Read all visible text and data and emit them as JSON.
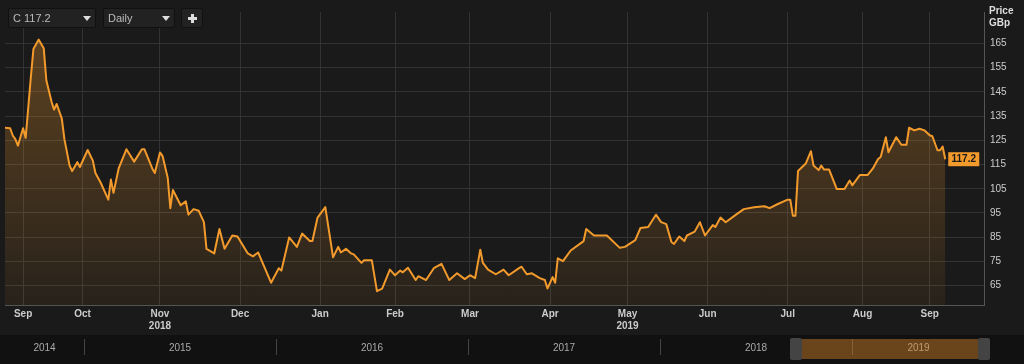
{
  "chart_data": {
    "type": "area",
    "ylabel": "Price GBp",
    "color": "#f39a2c",
    "x": [
      "2018-09-16",
      "2018-09-18",
      "2018-09-19",
      "2018-09-20",
      "2018-09-21",
      "2018-09-23",
      "2018-09-24",
      "2018-09-26",
      "2018-09-27",
      "2018-09-29",
      "2018-10-01",
      "2018-10-02",
      "2018-10-04",
      "2018-10-05",
      "2018-10-06",
      "2018-10-08",
      "2018-10-09",
      "2018-10-11",
      "2018-10-12",
      "2018-10-14",
      "2018-10-15",
      "2018-10-18",
      "2018-10-20",
      "2018-10-21",
      "2018-10-23",
      "2018-10-26",
      "2018-10-27",
      "2018-10-28",
      "2018-10-30",
      "2018-11-02",
      "2018-11-05",
      "2018-11-08",
      "2018-11-09",
      "2018-11-12",
      "2018-11-13",
      "2018-11-15",
      "2018-11-16",
      "2018-11-18",
      "2018-11-19",
      "2018-11-20",
      "2018-11-23",
      "2018-11-25",
      "2018-11-26",
      "2018-11-28",
      "2018-11-30",
      "2018-12-02",
      "2018-12-03",
      "2018-12-06",
      "2018-12-08",
      "2018-12-10",
      "2018-12-13",
      "2018-12-15",
      "2018-12-19",
      "2018-12-21",
      "2018-12-23",
      "2018-12-28",
      "2018-12-31",
      "2019-01-01",
      "2019-01-04",
      "2019-01-07",
      "2019-01-09",
      "2019-01-12",
      "2019-01-13",
      "2019-01-15",
      "2019-01-18",
      "2019-01-21",
      "2019-01-23",
      "2019-01-24",
      "2019-01-26",
      "2019-01-28",
      "2019-01-29",
      "2019-02-01",
      "2019-02-02",
      "2019-02-05",
      "2019-02-07",
      "2019-02-09",
      "2019-02-12",
      "2019-02-14",
      "2019-02-16",
      "2019-02-17",
      "2019-02-19",
      "2019-02-22",
      "2019-02-23",
      "2019-02-26",
      "2019-03-01",
      "2019-03-04",
      "2019-03-07",
      "2019-03-10",
      "2019-03-13",
      "2019-03-15",
      "2019-03-17",
      "2019-03-19",
      "2019-03-20",
      "2019-03-22",
      "2019-03-25",
      "2019-03-28",
      "2019-03-30",
      "2019-04-03",
      "2019-04-04",
      "2019-04-06",
      "2019-04-08",
      "2019-04-11",
      "2019-04-13",
      "2019-04-14",
      "2019-04-16",
      "2019-04-17",
      "2019-04-18",
      "2019-04-20",
      "2019-04-23",
      "2019-04-28",
      "2019-04-29",
      "2019-05-02",
      "2019-05-04",
      "2019-05-07",
      "2019-05-12",
      "2019-05-14",
      "2019-05-18",
      "2019-05-20",
      "2019-05-23",
      "2019-05-26",
      "2019-05-28",
      "2019-05-30",
      "2019-06-01",
      "2019-06-02",
      "2019-06-04",
      "2019-06-06",
      "2019-06-07",
      "2019-06-10",
      "2019-06-12",
      "2019-06-14",
      "2019-06-17",
      "2019-06-18",
      "2019-06-20",
      "2019-06-22",
      "2019-06-26",
      "2019-06-29",
      "2019-07-03",
      "2019-07-07",
      "2019-07-09",
      "2019-07-12",
      "2019-07-16",
      "2019-07-17",
      "2019-07-18",
      "2019-07-19",
      "2019-07-20",
      "2019-07-23",
      "2019-07-25",
      "2019-07-26",
      "2019-07-28",
      "2019-07-29",
      "2019-07-30",
      "2019-08-01",
      "2019-08-03",
      "2019-08-04",
      "2019-08-07",
      "2019-08-09",
      "2019-08-10",
      "2019-08-13",
      "2019-08-16",
      "2019-08-18",
      "2019-08-20",
      "2019-08-21",
      "2019-08-23",
      "2019-08-24",
      "2019-08-27",
      "2019-08-29",
      "2019-08-31",
      "2019-09-01",
      "2019-09-03",
      "2019-09-05",
      "2019-09-07",
      "2019-09-09",
      "2019-09-10",
      "2019-09-12",
      "2019-09-13",
      "2019-09-14",
      "2019-09-15"
    ],
    "values": [
      130.2,
      130,
      127,
      125.5,
      122.8,
      130,
      126,
      151,
      162.7,
      166.6,
      163,
      149.8,
      141,
      137.7,
      140,
      134,
      125.5,
      114.6,
      112.3,
      116,
      114,
      121,
      116.6,
      111.5,
      107.6,
      100.5,
      108.8,
      103.3,
      113.4,
      121.3,
      116.2,
      121.3,
      121.3,
      113.4,
      111.5,
      120,
      118.5,
      109.5,
      97,
      104.5,
      98.2,
      99.8,
      94.3,
      96.6,
      95.9,
      91.2,
      80.2,
      78.3,
      88.4,
      80.2,
      85.7,
      85.3,
      78.3,
      77.1,
      78.7,
      66.2,
      72.2,
      71.2,
      84.9,
      81,
      86.5,
      83.4,
      83.4,
      93.1,
      97.4,
      76.7,
      81,
      78.7,
      80.2,
      78.3,
      77.9,
      74.4,
      75.5,
      75.5,
      62.7,
      63.8,
      71.6,
      69.3,
      71.2,
      70.5,
      72.4,
      67.3,
      68.9,
      67.3,
      72.2,
      74,
      67.3,
      70.1,
      67.7,
      69.3,
      68.1,
      79.8,
      74.4,
      71.6,
      69.7,
      71.6,
      69.3,
      72.2,
      72.8,
      69.7,
      70.1,
      68.1,
      67.3,
      63.8,
      68.5,
      66.2,
      76.3,
      75.1,
      79.5,
      83.4,
      88.4,
      85.7,
      85.7,
      85.7,
      80.6,
      81,
      83.8,
      88.8,
      89.2,
      94.3,
      91.2,
      90.4,
      83,
      82.2,
      85.3,
      83.4,
      85.7,
      87.3,
      91.2,
      85.7,
      90,
      89.2,
      93.1,
      91.2,
      94.3,
      96.6,
      97.4,
      97.8,
      97,
      98.6,
      100.5,
      100.5,
      93.9,
      93.9,
      112.3,
      115.4,
      120.5,
      114.6,
      112.7,
      114.6,
      113,
      113,
      107.6,
      104.9,
      104.9,
      108.4,
      106.4,
      110.7,
      110.7,
      113.4,
      117.3,
      118.1,
      126.3,
      120.1,
      126.3,
      123.2,
      123.2,
      130.2,
      129.1,
      129.8,
      129.1,
      127.1,
      126.7,
      120.9,
      120.9,
      122.4,
      117.2
    ],
    "xlim": [
      "2018-09-16",
      "2019-09-30"
    ],
    "xticks": [
      {
        "value": "2018-09-23",
        "label": "Sep"
      },
      {
        "value": "2018-10-16",
        "label": "Oct"
      },
      {
        "value": "2018-11-15",
        "label": "Nov\n2018"
      },
      {
        "value": "2018-12-16",
        "label": "Dec"
      },
      {
        "value": "2019-01-16",
        "label": "Jan"
      },
      {
        "value": "2019-02-14",
        "label": "Feb"
      },
      {
        "value": "2019-03-15",
        "label": "Mar"
      },
      {
        "value": "2019-04-15",
        "label": "Apr"
      },
      {
        "value": "2019-05-15",
        "label": "May\n2019"
      },
      {
        "value": "2019-06-15",
        "label": "Jun"
      },
      {
        "value": "2019-07-16",
        "label": "Jul"
      },
      {
        "value": "2019-08-14",
        "label": "Aug"
      },
      {
        "value": "2019-09-09",
        "label": "Sep"
      }
    ],
    "ylim": [
      57,
      178
    ],
    "yticks": [
      65,
      75,
      85,
      95,
      105,
      115,
      125,
      135,
      145,
      155,
      165
    ],
    "grid": true,
    "legend": false,
    "annotations": [
      "C 117.2",
      "Daily",
      "2014",
      "2015",
      "2016",
      "2017",
      "2018",
      "2019",
      {
        "text": "117.2",
        "x": "2019-09-15",
        "y": 117.2
      }
    ]
  }
}
